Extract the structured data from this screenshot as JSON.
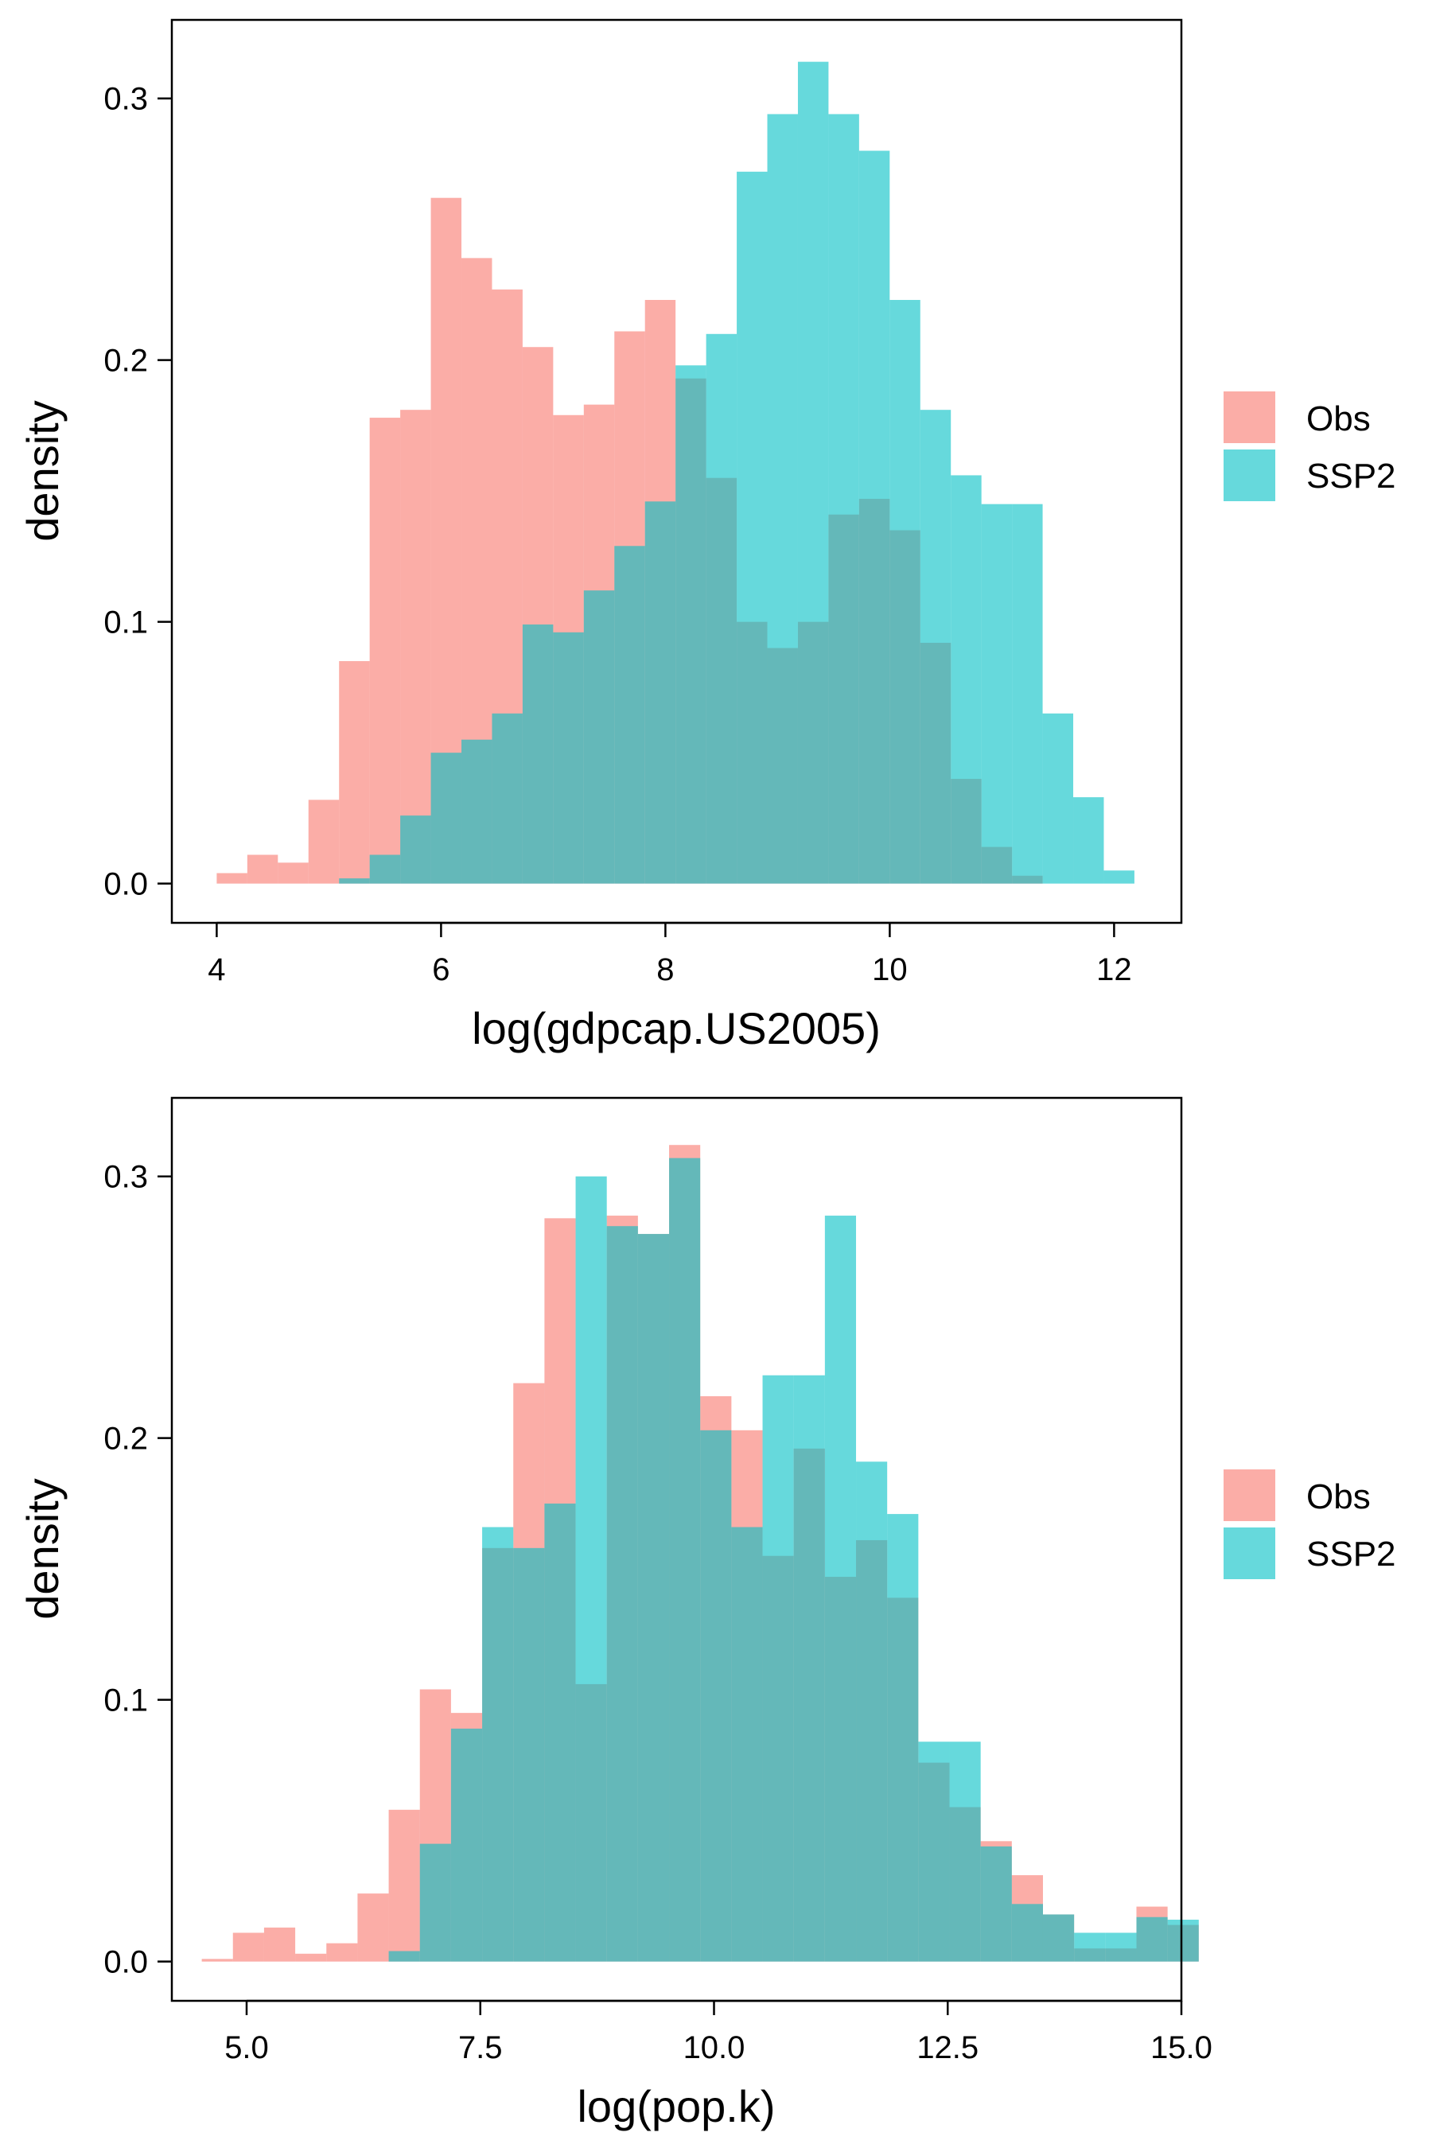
{
  "colors": {
    "obs": "#F8766D",
    "ssp2": "#00BFC4",
    "fill_opacity": 0.6
  },
  "chart_data": [
    {
      "type": "histogram",
      "xlabel": "log(gdpcap.US2005)",
      "ylabel": "density",
      "xlim": [
        3.6,
        12.6
      ],
      "ylim": [
        -0.015,
        0.33
      ],
      "xticks": [
        4,
        6,
        8,
        10,
        12
      ],
      "xtick_labels": [
        "4",
        "6",
        "8",
        "10",
        "12"
      ],
      "yticks": [
        0.0,
        0.1,
        0.2,
        0.3
      ],
      "ytick_labels": [
        "0.0",
        "0.1",
        "0.2",
        "0.3"
      ],
      "grid": false,
      "legend": {
        "position": "right",
        "entries": [
          "Obs",
          "SSP2"
        ]
      },
      "bins": {
        "start": 4.0,
        "width": 0.2727
      },
      "series": [
        {
          "name": "Obs",
          "values": [
            0.004,
            0.011,
            0.008,
            0.032,
            0.085,
            0.178,
            0.181,
            0.262,
            0.239,
            0.227,
            0.205,
            0.179,
            0.183,
            0.211,
            0.223,
            0.193,
            0.155,
            0.1,
            0.09,
            0.1,
            0.141,
            0.147,
            0.135,
            0.092,
            0.04,
            0.014,
            0.003
          ]
        },
        {
          "name": "SSP2",
          "values": [
            0,
            0,
            0,
            0,
            0.002,
            0.011,
            0.026,
            0.05,
            0.055,
            0.065,
            0.099,
            0.096,
            0.112,
            0.129,
            0.146,
            0.198,
            0.21,
            0.272,
            0.294,
            0.314,
            0.294,
            0.28,
            0.223,
            0.181,
            0.156,
            0.145,
            0.145,
            0.065,
            0.033,
            0.005
          ]
        }
      ]
    },
    {
      "type": "histogram",
      "xlabel": "log(pop.k)",
      "ylabel": "density",
      "xlim": [
        4.2,
        15.0
      ],
      "ylim": [
        -0.015,
        0.33
      ],
      "xticks": [
        5.0,
        7.5,
        10.0,
        12.5,
        15.0
      ],
      "xtick_labels": [
        "5.0",
        "7.5",
        "10.0",
        "12.5",
        "15.0"
      ],
      "yticks": [
        0.0,
        0.1,
        0.2,
        0.3
      ],
      "ytick_labels": [
        "0.0",
        "0.1",
        "0.2",
        "0.3"
      ],
      "grid": false,
      "legend": {
        "position": "right",
        "entries": [
          "Obs",
          "SSP2"
        ]
      },
      "bins": {
        "start": 4.52,
        "width": 0.3333
      },
      "series": [
        {
          "name": "Obs",
          "values": [
            0.001,
            0.011,
            0.013,
            0.003,
            0.007,
            0.026,
            0.058,
            0.104,
            0.095,
            0.158,
            0.221,
            0.284,
            0.106,
            0.285,
            0.278,
            0.312,
            0.216,
            0.203,
            0.155,
            0.196,
            0.147,
            0.161,
            0.139,
            0.076,
            0.059,
            0.046,
            0.033,
            0.018,
            0.005,
            0.005,
            0.021,
            0.014
          ]
        },
        {
          "name": "SSP2",
          "values": [
            0,
            0,
            0,
            0,
            0,
            0,
            0.004,
            0.045,
            0.089,
            0.166,
            0.158,
            0.175,
            0.3,
            0.281,
            0.278,
            0.307,
            0.203,
            0.166,
            0.224,
            0.224,
            0.285,
            0.191,
            0.171,
            0.084,
            0.084,
            0.044,
            0.022,
            0.018,
            0.011,
            0.011,
            0.017,
            0.016
          ]
        }
      ]
    }
  ]
}
